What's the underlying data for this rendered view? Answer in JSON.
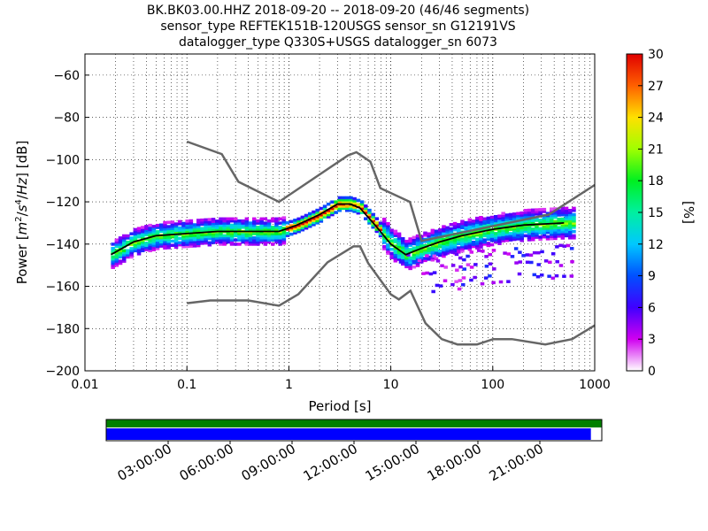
{
  "title": {
    "line1": "BK.BK03.00.HHZ   2018-09-20 -- 2018-09-20  (46/46 segments)",
    "line2": "sensor_type REFTEK151B-120USGS sensor_sn G12191VS",
    "line3": "datalogger_type Q330S+USGS datalogger_sn 6073"
  },
  "chart_data": [
    {
      "type": "heatmap",
      "title": "BK.BK03.00.HHZ   2018-09-20 -- 2018-09-20  (46/46 segments)",
      "xlabel": "Period [s]",
      "ylabel": "Power [m²/s⁴/Hz] [dB]",
      "xscale": "log",
      "xlim": [
        0.01,
        1000
      ],
      "ylim": [
        -200,
        -50
      ],
      "x_ticks": [
        "0.01",
        "0.1",
        "1",
        "10",
        "100",
        "1000"
      ],
      "y_ticks": [
        "−200",
        "−180",
        "−160",
        "−140",
        "−120",
        "−100",
        "−80",
        "−60"
      ],
      "grid": "dotted",
      "colorbar": {
        "label": "[%]",
        "range": [
          0,
          30
        ],
        "ticks": [
          "0",
          "3",
          "6",
          "9",
          "12",
          "15",
          "18",
          "21",
          "24",
          "27",
          "30"
        ]
      },
      "mean_curve": {
        "x": [
          0.018,
          0.03,
          0.05,
          0.1,
          0.2,
          0.5,
          0.8,
          1.2,
          2,
          3,
          4,
          5,
          7,
          10,
          14,
          20,
          30,
          50,
          100,
          200,
          500
        ],
        "y": [
          -145,
          -139,
          -136,
          -135,
          -134,
          -134,
          -134,
          -131,
          -126,
          -121,
          -121,
          -123,
          -131,
          -140,
          -145,
          -142,
          -139,
          -136,
          -133,
          -131,
          -130
        ]
      },
      "noise_model_high": {
        "x": [
          0.1,
          0.22,
          0.32,
          0.8,
          3.8,
          4.6,
          6.3,
          7.9,
          15.4,
          20,
          354.8,
          1000
        ],
        "y": [
          -91.5,
          -97.4,
          -110.5,
          -120,
          -98,
          -96.5,
          -101,
          -113.5,
          -120,
          -138.5,
          -126,
          -112
        ]
      },
      "noise_model_low": {
        "x": [
          0.1,
          0.17,
          0.4,
          0.8,
          1.24,
          2.4,
          4.3,
          5,
          6,
          10,
          12,
          15.6,
          21.9,
          31.6,
          45,
          70,
          101,
          154,
          328,
          600,
          1000
        ],
        "y": [
          -168,
          -166.7,
          -166.7,
          -169.2,
          -163.7,
          -148.6,
          -141.1,
          -141.1,
          -149,
          -163.8,
          -166.2,
          -162.1,
          -177.5,
          -185,
          -187.5,
          -187.5,
          -185,
          -185,
          -187.5,
          -185,
          -178.5
        ]
      },
      "scattered_bands": [
        {
          "x_range": [
            12,
            600
          ],
          "y": -146
        },
        {
          "x_range": [
            20,
            600
          ],
          "y": -152
        },
        {
          "x_range": [
            30,
            600
          ],
          "y": -158
        },
        {
          "x_range": [
            25,
            50
          ],
          "y": -161
        }
      ]
    },
    {
      "type": "timeline",
      "time_ticks": [
        "03:00:00",
        "06:00:00",
        "09:00:00",
        "12:00:00",
        "15:00:00",
        "18:00:00",
        "21:00:00"
      ],
      "colors": {
        "data_bar": "#0000ff",
        "coverage_bar": "#008000"
      },
      "data_coverage": 0.978
    }
  ]
}
